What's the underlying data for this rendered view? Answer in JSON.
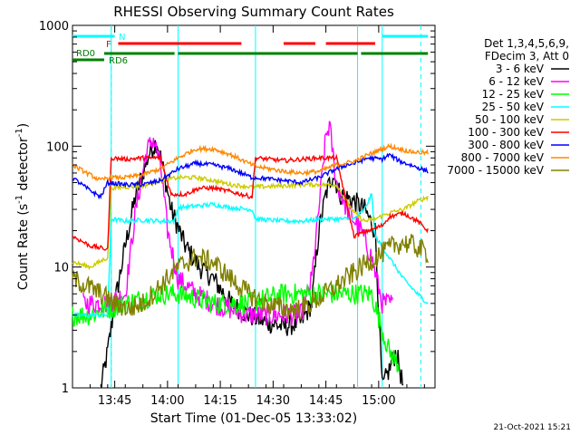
{
  "chart_data": {
    "type": "line",
    "title": "RHESSI Observing Summary Count Rates",
    "xlabel": "Start Time (01-Dec-05 13:33:02)",
    "ylabel_main": "Count Rate (s",
    "ylabel_sup1": "-1",
    "ylabel_mid": " detector",
    "ylabel_sup2": "-1",
    "ylabel_end": ")",
    "x_ticks": [
      {
        "label": "13:45",
        "t": 12
      },
      {
        "label": "14:00",
        "t": 27
      },
      {
        "label": "14:15",
        "t": 42
      },
      {
        "label": "14:30",
        "t": 57
      },
      {
        "label": "14:45",
        "t": 72
      },
      {
        "label": "15:00",
        "t": 87
      }
    ],
    "xlim_minutes": [
      0,
      103
    ],
    "y_scale": "log",
    "ylim": [
      1,
      1000
    ],
    "y_ticks": [
      {
        "label": "1",
        "v": 1
      },
      {
        "label": "10",
        "v": 10
      },
      {
        "label": "100",
        "v": 100
      },
      {
        "label": "1000",
        "v": 1000
      }
    ],
    "legend_header": [
      "Det 1,3,4,5,6,9,",
      "FDecim 3, Att 0"
    ],
    "legend_placement": "right",
    "series": [
      {
        "name": "3 - 6 keV",
        "color": "#000000",
        "points": [
          [
            8,
            1
          ],
          [
            10,
            2
          ],
          [
            12,
            5
          ],
          [
            15,
            15
          ],
          [
            18,
            40
          ],
          [
            22,
            90
          ],
          [
            24,
            110
          ],
          [
            26,
            60
          ],
          [
            28,
            30
          ],
          [
            32,
            15
          ],
          [
            36,
            10
          ],
          [
            40,
            8
          ],
          [
            45,
            5
          ],
          [
            50,
            4
          ],
          [
            55,
            3.5
          ],
          [
            60,
            3.2
          ],
          [
            65,
            3.5
          ],
          [
            68,
            5
          ],
          [
            70,
            20
          ],
          [
            72,
            40
          ],
          [
            74,
            60
          ],
          [
            76,
            40
          ],
          [
            80,
            35
          ],
          [
            83,
            30
          ],
          [
            86,
            20
          ],
          [
            88,
            1
          ],
          [
            92,
            2
          ],
          [
            94,
            1
          ]
        ]
      },
      {
        "name": "6 - 12 keV",
        "color": "#ff00ff",
        "points": [
          [
            3,
            5
          ],
          [
            10,
            5
          ],
          [
            15,
            6
          ],
          [
            18,
            30
          ],
          [
            21,
            90
          ],
          [
            23,
            115
          ],
          [
            25,
            70
          ],
          [
            27,
            20
          ],
          [
            30,
            8
          ],
          [
            35,
            6
          ],
          [
            40,
            5
          ],
          [
            50,
            4
          ],
          [
            56,
            4
          ],
          [
            60,
            4
          ],
          [
            65,
            4
          ],
          [
            68,
            8
          ],
          [
            70,
            30
          ],
          [
            72,
            120
          ],
          [
            73,
            150
          ],
          [
            75,
            50
          ],
          [
            78,
            30
          ],
          [
            82,
            20
          ],
          [
            85,
            12
          ],
          [
            88,
            5
          ],
          [
            91,
            5
          ]
        ]
      },
      {
        "name": "12 - 25 keV",
        "color": "#00ff00",
        "points": [
          [
            0,
            4
          ],
          [
            5,
            4
          ],
          [
            10,
            4.5
          ],
          [
            15,
            5
          ],
          [
            20,
            5.5
          ],
          [
            25,
            6
          ],
          [
            30,
            6
          ],
          [
            35,
            5.5
          ],
          [
            40,
            5
          ],
          [
            45,
            5
          ],
          [
            50,
            5
          ],
          [
            55,
            5.5
          ],
          [
            60,
            6
          ],
          [
            65,
            6
          ],
          [
            70,
            6
          ],
          [
            75,
            6
          ],
          [
            80,
            6
          ],
          [
            85,
            6
          ],
          [
            88,
            3
          ],
          [
            90,
            2
          ],
          [
            93,
            1.5
          ]
        ]
      },
      {
        "name": "25 - 50 keV",
        "color": "#00ffff",
        "points": [
          [
            0,
            4
          ],
          [
            10,
            4
          ],
          [
            11,
            25
          ],
          [
            15,
            24
          ],
          [
            20,
            24.5
          ],
          [
            25,
            24
          ],
          [
            29,
            24
          ],
          [
            30,
            31
          ],
          [
            35,
            32
          ],
          [
            40,
            33
          ],
          [
            45,
            31
          ],
          [
            51,
            30
          ],
          [
            52,
            25
          ],
          [
            60,
            24
          ],
          [
            65,
            24
          ],
          [
            72,
            25
          ],
          [
            80,
            25
          ],
          [
            83,
            30
          ],
          [
            85,
            40
          ],
          [
            86,
            18
          ],
          [
            90,
            12
          ],
          [
            94,
            8
          ],
          [
            98,
            6
          ],
          [
            101,
            5
          ]
        ]
      },
      {
        "name": "50 - 100 keV",
        "color": "#cccc00",
        "points": [
          [
            0,
            11
          ],
          [
            5,
            10
          ],
          [
            10,
            12
          ],
          [
            11,
            45
          ],
          [
            15,
            46
          ],
          [
            20,
            47
          ],
          [
            25,
            52
          ],
          [
            30,
            55
          ],
          [
            35,
            55
          ],
          [
            40,
            52
          ],
          [
            45,
            48
          ],
          [
            51,
            46
          ],
          [
            52,
            46
          ],
          [
            60,
            47
          ],
          [
            65,
            48
          ],
          [
            70,
            48
          ],
          [
            75,
            48
          ],
          [
            80,
            28
          ],
          [
            83,
            24
          ],
          [
            86,
            25
          ],
          [
            90,
            28
          ],
          [
            94,
            30
          ],
          [
            98,
            35
          ],
          [
            101,
            38
          ]
        ]
      },
      {
        "name": "100 - 300 keV",
        "color": "#ff0000",
        "points": [
          [
            0,
            18
          ],
          [
            5,
            15
          ],
          [
            10,
            14
          ],
          [
            11,
            80
          ],
          [
            15,
            78
          ],
          [
            20,
            80
          ],
          [
            25,
            80
          ],
          [
            28,
            40
          ],
          [
            32,
            40
          ],
          [
            36,
            45
          ],
          [
            40,
            45
          ],
          [
            45,
            42
          ],
          [
            51,
            38
          ],
          [
            52,
            80
          ],
          [
            60,
            76
          ],
          [
            65,
            78
          ],
          [
            70,
            80
          ],
          [
            75,
            80
          ],
          [
            80,
            18
          ],
          [
            84,
            20
          ],
          [
            88,
            22
          ],
          [
            90,
            26
          ],
          [
            94,
            28
          ],
          [
            98,
            24
          ],
          [
            101,
            20
          ]
        ]
      },
      {
        "name": "300 - 800 keV",
        "color": "#0000ff",
        "points": [
          [
            0,
            55
          ],
          [
            4,
            45
          ],
          [
            8,
            38
          ],
          [
            10,
            50
          ],
          [
            15,
            48
          ],
          [
            20,
            48
          ],
          [
            25,
            52
          ],
          [
            30,
            65
          ],
          [
            35,
            72
          ],
          [
            40,
            70
          ],
          [
            45,
            65
          ],
          [
            51,
            55
          ],
          [
            52,
            55
          ],
          [
            60,
            52
          ],
          [
            65,
            50
          ],
          [
            70,
            55
          ],
          [
            75,
            65
          ],
          [
            78,
            70
          ],
          [
            80,
            72
          ],
          [
            84,
            80
          ],
          [
            88,
            78
          ],
          [
            90,
            85
          ],
          [
            93,
            75
          ],
          [
            96,
            70
          ],
          [
            101,
            62
          ]
        ]
      },
      {
        "name": "800 - 7000 keV",
        "color": "#ff8800",
        "points": [
          [
            0,
            70
          ],
          [
            4,
            60
          ],
          [
            8,
            52
          ],
          [
            10,
            55
          ],
          [
            15,
            55
          ],
          [
            20,
            58
          ],
          [
            25,
            65
          ],
          [
            30,
            80
          ],
          [
            35,
            95
          ],
          [
            40,
            95
          ],
          [
            45,
            85
          ],
          [
            51,
            70
          ],
          [
            52,
            68
          ],
          [
            60,
            62
          ],
          [
            65,
            60
          ],
          [
            70,
            62
          ],
          [
            75,
            70
          ],
          [
            80,
            75
          ],
          [
            84,
            85
          ],
          [
            88,
            95
          ],
          [
            90,
            100
          ],
          [
            93,
            95
          ],
          [
            96,
            90
          ],
          [
            101,
            88
          ]
        ]
      },
      {
        "name": "7000 - 15000 keV",
        "color": "#808000",
        "points": [
          [
            0,
            8
          ],
          [
            4,
            7
          ],
          [
            8,
            6
          ],
          [
            12,
            5
          ],
          [
            16,
            4.5
          ],
          [
            20,
            5
          ],
          [
            25,
            7
          ],
          [
            30,
            10
          ],
          [
            35,
            12
          ],
          [
            40,
            11
          ],
          [
            45,
            8
          ],
          [
            50,
            6
          ],
          [
            55,
            5
          ],
          [
            60,
            4.5
          ],
          [
            65,
            4.5
          ],
          [
            70,
            5.5
          ],
          [
            75,
            7
          ],
          [
            80,
            9
          ],
          [
            84,
            11
          ],
          [
            88,
            13
          ],
          [
            91,
            15
          ],
          [
            94,
            16
          ],
          [
            97,
            15
          ],
          [
            101,
            13
          ]
        ]
      }
    ],
    "flags": {
      "N_label": "N",
      "F_label": "F",
      "RD0_label": "RD0",
      "RD6_label": "RD6",
      "night_segments": [
        [
          0,
          12
        ],
        [
          88,
          101
        ]
      ],
      "flare_segments": [
        [
          13,
          48
        ],
        [
          60,
          69
        ],
        [
          72,
          86
        ]
      ],
      "rd0_segments": [
        [
          0,
          9
        ]
      ],
      "rd6_segments": [
        [
          9,
          29
        ],
        [
          30,
          52
        ],
        [
          52,
          81
        ],
        [
          82,
          101
        ]
      ]
    },
    "attenuator_times": [
      11,
      30,
      52,
      81,
      88
    ],
    "saa_dashed_times": [
      11,
      99
    ]
  },
  "timestamp": "21-Oct-2021 15:21"
}
